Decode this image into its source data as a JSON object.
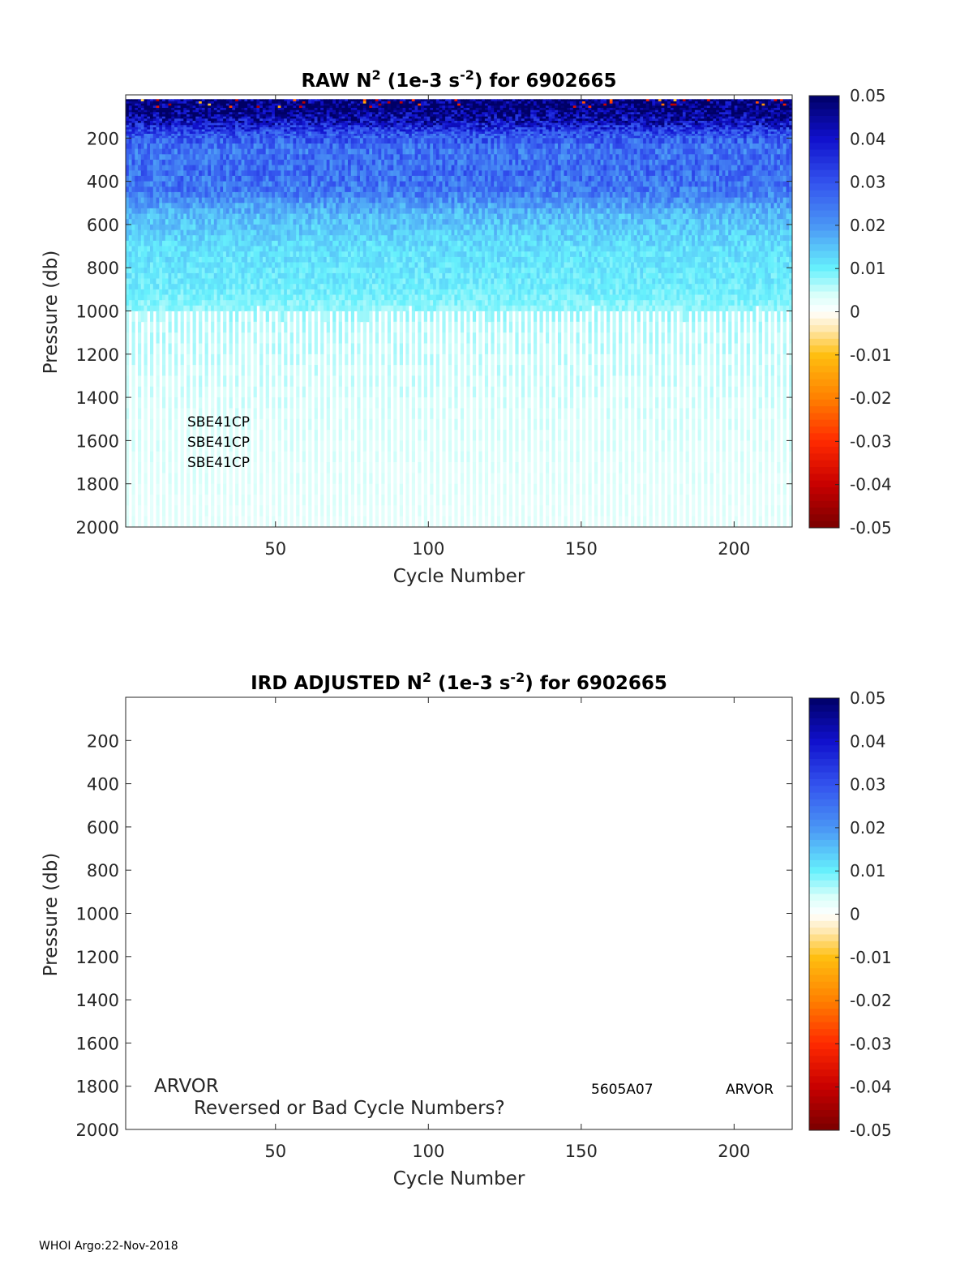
{
  "chart_data": [
    {
      "type": "heatmap",
      "title": {
        "pre": "RAW N",
        "sup1": "2",
        "mid": " (1e-3 s",
        "sup2": "-2",
        "post": ") for 6902665"
      },
      "xlabel": "Cycle Number",
      "ylabel": "Pressure (db)",
      "xlim": [
        1,
        219
      ],
      "ylim": [
        0,
        2000
      ],
      "y_reversed": true,
      "xticks": [
        "50",
        "100",
        "150",
        "200"
      ],
      "yticks": [
        "200",
        "400",
        "600",
        "800",
        "1000",
        "1200",
        "1400",
        "1600",
        "1800",
        "2000"
      ],
      "clim": [
        -0.05,
        0.05
      ],
      "colorbar_ticks": [
        "0.05",
        "0.04",
        "0.03",
        "0.02",
        "0.01",
        "0",
        "-0.01",
        "-0.02",
        "-0.03",
        "-0.04",
        "-0.05"
      ],
      "mean_profile": {
        "pressure": [
          10,
          60,
          120,
          180,
          250,
          350,
          450,
          550,
          700,
          900,
          1050,
          1500,
          2000
        ],
        "value": [
          0.048,
          0.05,
          0.042,
          0.03,
          0.025,
          0.026,
          0.024,
          0.016,
          0.012,
          0.01,
          0.006,
          0.004,
          0.003
        ]
      },
      "deep_sampling_starts_db": 1000,
      "annotations": [
        "SBE41CP",
        "SBE41CP",
        "SBE41CP"
      ]
    },
    {
      "type": "heatmap",
      "title": {
        "pre": "IRD  ADJUSTED N",
        "sup1": "2",
        "mid": " (1e-3 s",
        "sup2": "-2",
        "post": ") for 6902665"
      },
      "xlabel": "Cycle Number",
      "ylabel": "Pressure (db)",
      "xlim": [
        1,
        219
      ],
      "ylim": [
        0,
        2000
      ],
      "y_reversed": true,
      "xticks": [
        "50",
        "100",
        "150",
        "200"
      ],
      "yticks": [
        "200",
        "400",
        "600",
        "800",
        "1000",
        "1200",
        "1400",
        "1600",
        "1800",
        "2000"
      ],
      "clim": [
        -0.05,
        0.05
      ],
      "colorbar_ticks": [
        "0.05",
        "0.04",
        "0.03",
        "0.02",
        "0.01",
        "0",
        "-0.01",
        "-0.02",
        "-0.03",
        "-0.04",
        "-0.05"
      ],
      "empty": true,
      "annotations": {
        "platform": "ARVOR",
        "warning": "Reversed or Bad Cycle Numbers?",
        "firmware": "5605A07",
        "platform2": "ARVOR"
      }
    }
  ],
  "colormap": {
    "stops": [
      -0.05,
      -0.04,
      -0.03,
      -0.02,
      -0.01,
      -0.004,
      0,
      0.004,
      0.01,
      0.02,
      0.03,
      0.04,
      0.05
    ],
    "colors": [
      "#7a0000",
      "#c80000",
      "#ff2a00",
      "#ff8000",
      "#ffbf10",
      "#ffe8b0",
      "#ffffff",
      "#d8fffa",
      "#66f0fc",
      "#4a95f5",
      "#3352ee",
      "#1010cc",
      "#000066"
    ]
  },
  "footer": "WHOI Argo:22-Nov-2018"
}
